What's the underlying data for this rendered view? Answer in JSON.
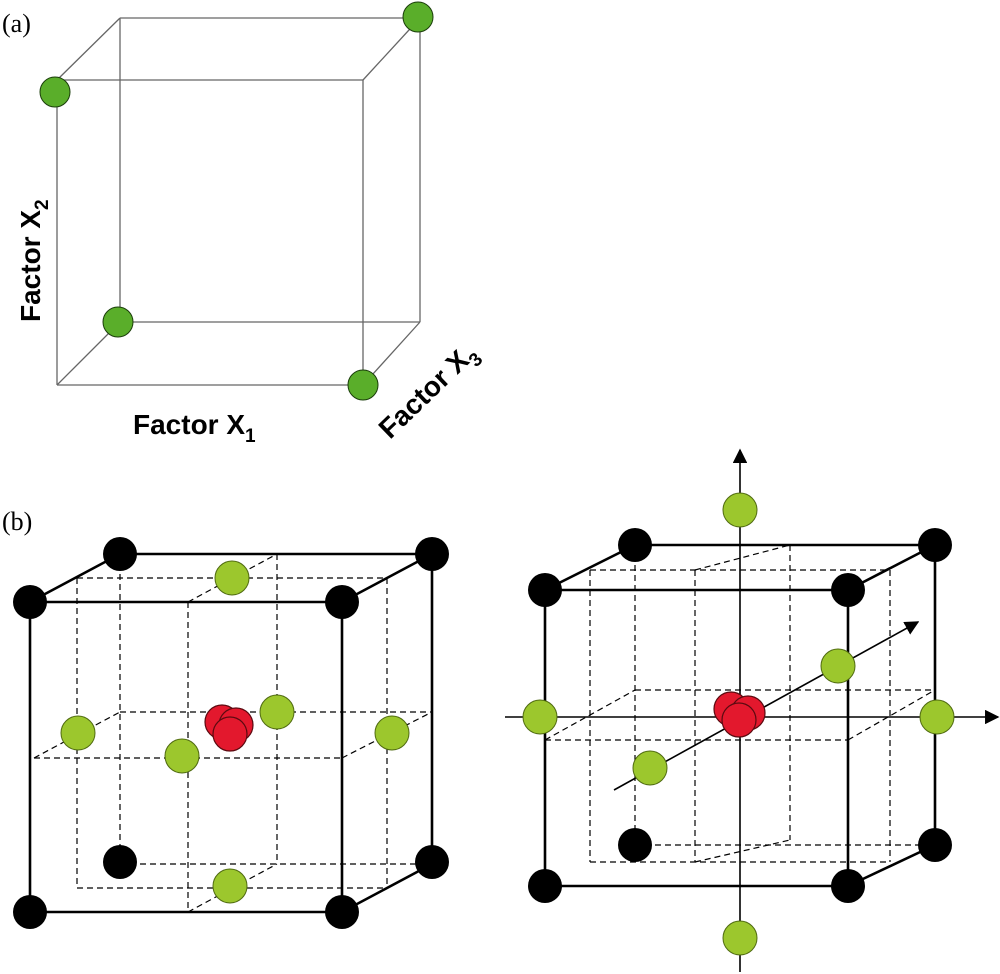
{
  "panel_a": {
    "label": "(a)",
    "axis_x1": {
      "text": "Factor X",
      "sub": "1"
    },
    "axis_x2": {
      "text": "Factor X",
      "sub": "2"
    },
    "axis_x3": {
      "text": "Factor X",
      "sub": "3"
    },
    "point_color": "#5aae2a",
    "line_color": "#666666"
  },
  "panel_b": {
    "label": "(b)",
    "corner_color": "#000000",
    "axial_color": "#9cc72d",
    "center_color": "#e3182d"
  }
}
